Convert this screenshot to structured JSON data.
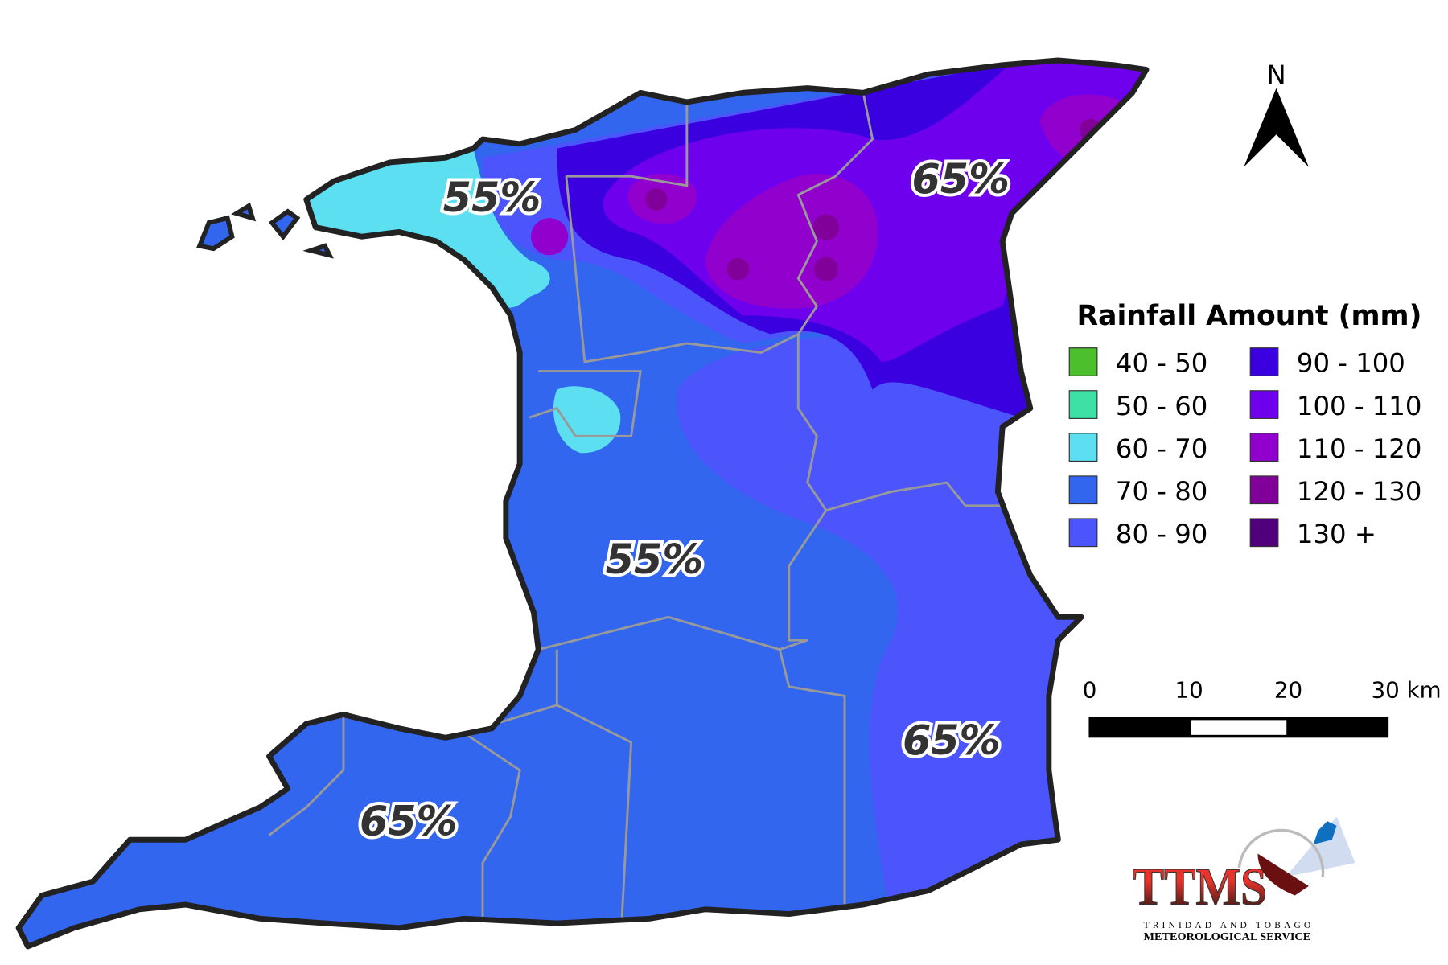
{
  "map": {
    "zone_labels": [
      "55%",
      "65%",
      "55%",
      "65%",
      "65%"
    ],
    "north_label": "N"
  },
  "legend": {
    "title": "Rainfall Amount (mm)",
    "items": [
      {
        "label": "40 - 50",
        "color": "#4cc02c"
      },
      {
        "label": "50 - 60",
        "color": "#3fe0a5"
      },
      {
        "label": "60 - 70",
        "color": "#5cdff0"
      },
      {
        "label": "70 - 80",
        "color": "#3366ee"
      },
      {
        "label": "80 - 90",
        "color": "#4b55fb"
      },
      {
        "label": "90 - 100",
        "color": "#3b00e0"
      },
      {
        "label": "100 - 110",
        "color": "#6e00ee"
      },
      {
        "label": "110 - 120",
        "color": "#9100cc"
      },
      {
        "label": "120 - 130",
        "color": "#800099"
      },
      {
        "label": "130 +",
        "color": "#50007a"
      }
    ]
  },
  "scale_bar": {
    "labels": [
      "0",
      "10",
      "20",
      "30 km"
    ]
  },
  "logo": {
    "acronym": "TTMS",
    "line1": "TRINIDAD AND TOBAGO",
    "line2": "METEOROLOGICAL SERVICE"
  }
}
